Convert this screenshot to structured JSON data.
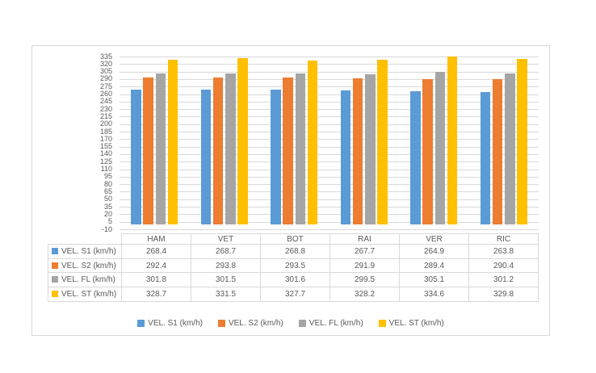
{
  "window": {
    "background": "#ffffff"
  },
  "chart": {
    "title": "",
    "frame_border_color": "#d9d9d9",
    "gridline_color": "#d9d9d9",
    "table_border_color": "#d9d9d9",
    "text_color": "#595959"
  },
  "chart_data": {
    "type": "bar",
    "title": "",
    "xlabel": "",
    "ylabel": "",
    "categories": [
      "HAM",
      "VET",
      "BOT",
      "RAI",
      "VER",
      "RIC"
    ],
    "series": [
      {
        "name": "VEL. S1 (km/h)",
        "color": "#5b9bd5",
        "values": [
          268.4,
          268.7,
          268.8,
          267.7,
          264.9,
          263.8
        ]
      },
      {
        "name": "VEL. S2 (km/h)",
        "color": "#ed7d31",
        "values": [
          292.4,
          293.8,
          293.5,
          291.9,
          289.4,
          290.4
        ]
      },
      {
        "name": "VEL. FL (km/h)",
        "color": "#a5a5a5",
        "values": [
          301.8,
          301.5,
          301.6,
          299.5,
          305.1,
          301.2
        ]
      },
      {
        "name": "VEL. ST (km/h)",
        "color": "#ffc000",
        "values": [
          328.7,
          331.5,
          327.7,
          328.2,
          334.6,
          329.8
        ]
      }
    ],
    "ylim": [
      -10,
      335
    ],
    "ytick_step": 15,
    "yticks": [
      335,
      320,
      305,
      290,
      275,
      260,
      245,
      230,
      215,
      200,
      185,
      170,
      155,
      140,
      125,
      110,
      95,
      80,
      65,
      50,
      35,
      20,
      5,
      -10
    ],
    "grid": true,
    "legend_position": "bottom",
    "has_data_table": true,
    "value_decimals": 1
  }
}
